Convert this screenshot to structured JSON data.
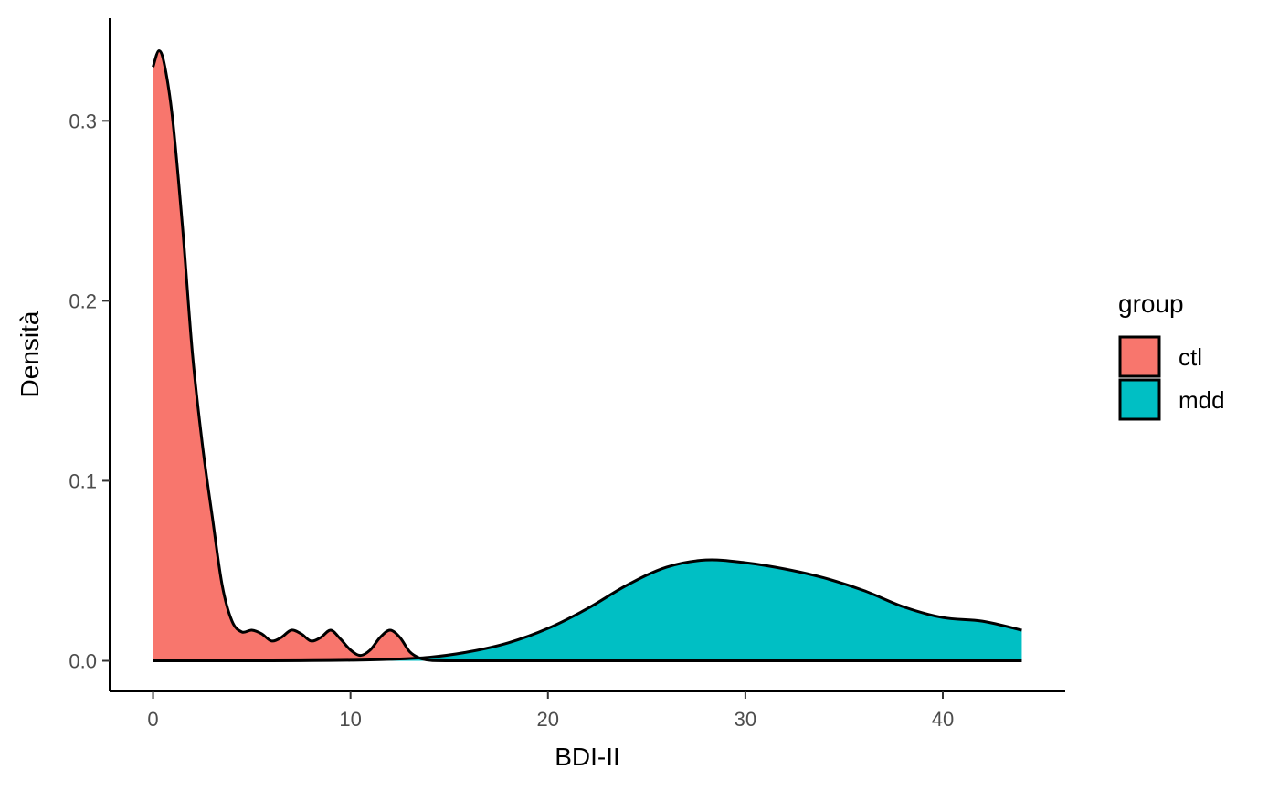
{
  "chart_data": {
    "type": "area",
    "subtype": "density",
    "xlabel": "BDI-II",
    "ylabel": "Densità",
    "xlim": [
      -2.2,
      46.2
    ],
    "ylim": [
      -0.017,
      0.357
    ],
    "xticks": [
      0,
      10,
      20,
      30,
      40
    ],
    "xtick_labels": [
      "0",
      "10",
      "20",
      "30",
      "40"
    ],
    "yticks": [
      0.0,
      0.1,
      0.2,
      0.3
    ],
    "ytick_labels": [
      "0.0",
      "0.1",
      "0.2",
      "0.3"
    ],
    "grid": false,
    "legend": {
      "title": "group",
      "position": "right"
    },
    "series": [
      {
        "name": "ctl",
        "color": "#F8766D",
        "points": [
          [
            0,
            0.33
          ],
          [
            0.3,
            0.339
          ],
          [
            0.6,
            0.33
          ],
          [
            1,
            0.3
          ],
          [
            1.5,
            0.24
          ],
          [
            2,
            0.17
          ],
          [
            2.5,
            0.12
          ],
          [
            3,
            0.08
          ],
          [
            3.5,
            0.042
          ],
          [
            4,
            0.022
          ],
          [
            4.5,
            0.016
          ],
          [
            5,
            0.017
          ],
          [
            5.5,
            0.015
          ],
          [
            6,
            0.011
          ],
          [
            6.5,
            0.013
          ],
          [
            7,
            0.017
          ],
          [
            7.5,
            0.015
          ],
          [
            8,
            0.011
          ],
          [
            8.5,
            0.013
          ],
          [
            9,
            0.017
          ],
          [
            9.5,
            0.012
          ],
          [
            10,
            0.006
          ],
          [
            10.5,
            0.003
          ],
          [
            11,
            0.006
          ],
          [
            11.5,
            0.013
          ],
          [
            12,
            0.017
          ],
          [
            12.5,
            0.013
          ],
          [
            13,
            0.005
          ],
          [
            13.5,
            0.0015
          ],
          [
            14,
            0.0003
          ],
          [
            15,
            0.0
          ],
          [
            20,
            0.0
          ],
          [
            30,
            0.0
          ],
          [
            40,
            0.0
          ],
          [
            44,
            0.0
          ]
        ]
      },
      {
        "name": "mdd",
        "color": "#00BFC4",
        "points": [
          [
            0,
            0.0
          ],
          [
            6,
            0.0
          ],
          [
            8,
            0.0001
          ],
          [
            10,
            0.0003
          ],
          [
            12,
            0.0008
          ],
          [
            14,
            0.002
          ],
          [
            16,
            0.005
          ],
          [
            18,
            0.01
          ],
          [
            20,
            0.018
          ],
          [
            22,
            0.029
          ],
          [
            24,
            0.042
          ],
          [
            26,
            0.052
          ],
          [
            28,
            0.056
          ],
          [
            30,
            0.0545
          ],
          [
            32,
            0.051
          ],
          [
            34,
            0.046
          ],
          [
            36,
            0.039
          ],
          [
            38,
            0.03
          ],
          [
            40,
            0.024
          ],
          [
            42,
            0.022
          ],
          [
            44,
            0.017
          ]
        ]
      }
    ]
  }
}
